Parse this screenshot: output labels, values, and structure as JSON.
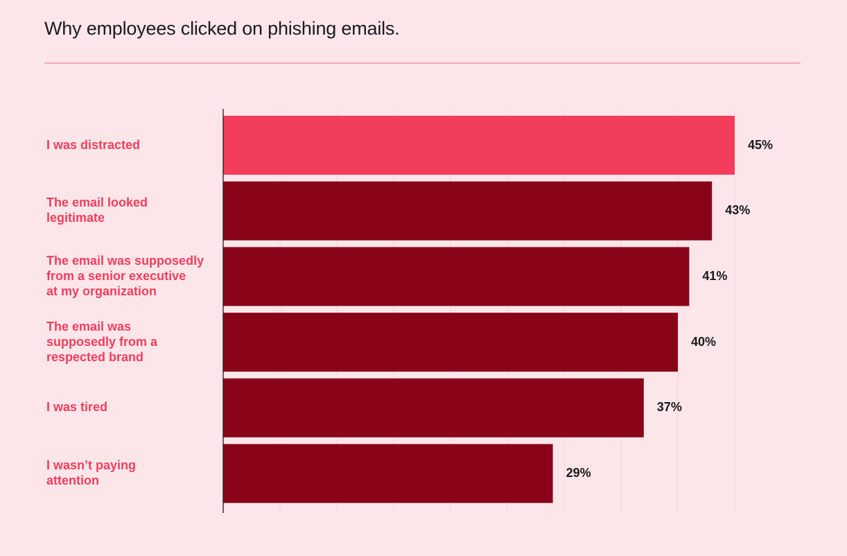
{
  "chart_data": {
    "type": "bar",
    "orientation": "horizontal",
    "title": "Why employees clicked on phishing emails.",
    "categories": [
      "I was distracted",
      "The email looked legitimate",
      "The email was supposedly from a senior executive at my organization",
      "The email was supposedly from a respected brand",
      "I was tired",
      "I wasn’t paying attention"
    ],
    "category_lines": [
      [
        "I was distracted"
      ],
      [
        "The email looked",
        "legitimate"
      ],
      [
        "The email was supposedly",
        "from a senior executive",
        "at my organization"
      ],
      [
        "The email was",
        "supposedly from a",
        "respected brand"
      ],
      [
        "I was tired"
      ],
      [
        "I wasn’t paying",
        "attention"
      ]
    ],
    "values": [
      45,
      43,
      41,
      40,
      37,
      29
    ],
    "value_labels": [
      "45%",
      "43%",
      "41%",
      "40%",
      "37%",
      "29%"
    ],
    "xlim": [
      0,
      45
    ],
    "grid": "vertical",
    "highlight_index": 0,
    "colors": {
      "highlight": "#f33d5c",
      "bar": "#8a0419",
      "label": "#f33d5c",
      "value": "#1a1a1a",
      "grid": "#f5d3da",
      "axis": "#1a1a1a"
    }
  }
}
